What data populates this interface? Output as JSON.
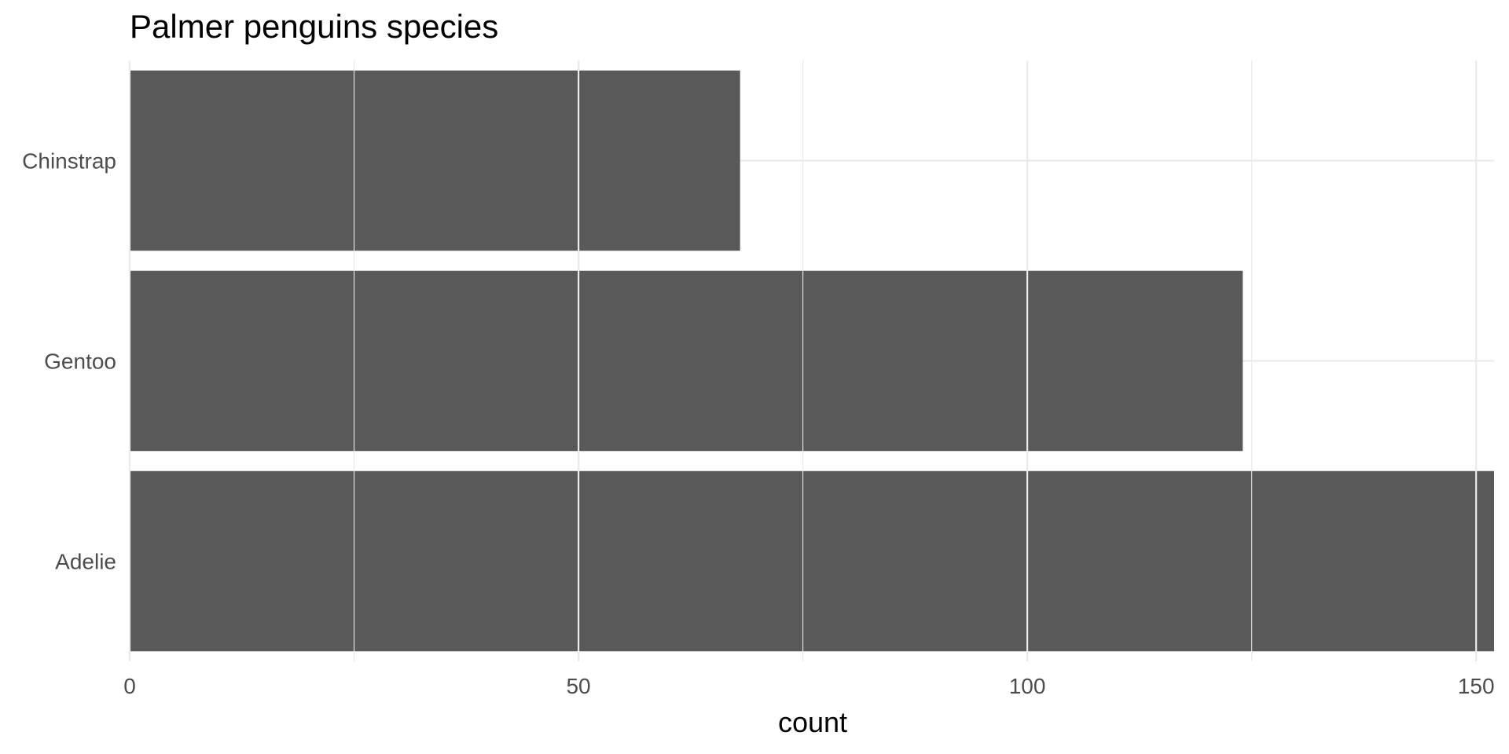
{
  "chart_data": {
    "type": "bar",
    "orientation": "horizontal",
    "title": "Palmer penguins species",
    "xlabel": "count",
    "ylabel": "",
    "categories": [
      "Adelie",
      "Gentoo",
      "Chinstrap"
    ],
    "values": [
      152,
      124,
      68
    ],
    "xlim": [
      0,
      152
    ],
    "x_ticks": [
      0,
      50,
      100,
      150
    ],
    "x_tick_labels": [
      "0",
      "50",
      "100",
      "150"
    ],
    "x_minor_ticks": [
      25,
      75,
      125
    ],
    "grid": true,
    "legend": "none",
    "colors": {
      "bar": "#595959",
      "grid": "#ebebeb",
      "background": "#ffffff"
    }
  }
}
